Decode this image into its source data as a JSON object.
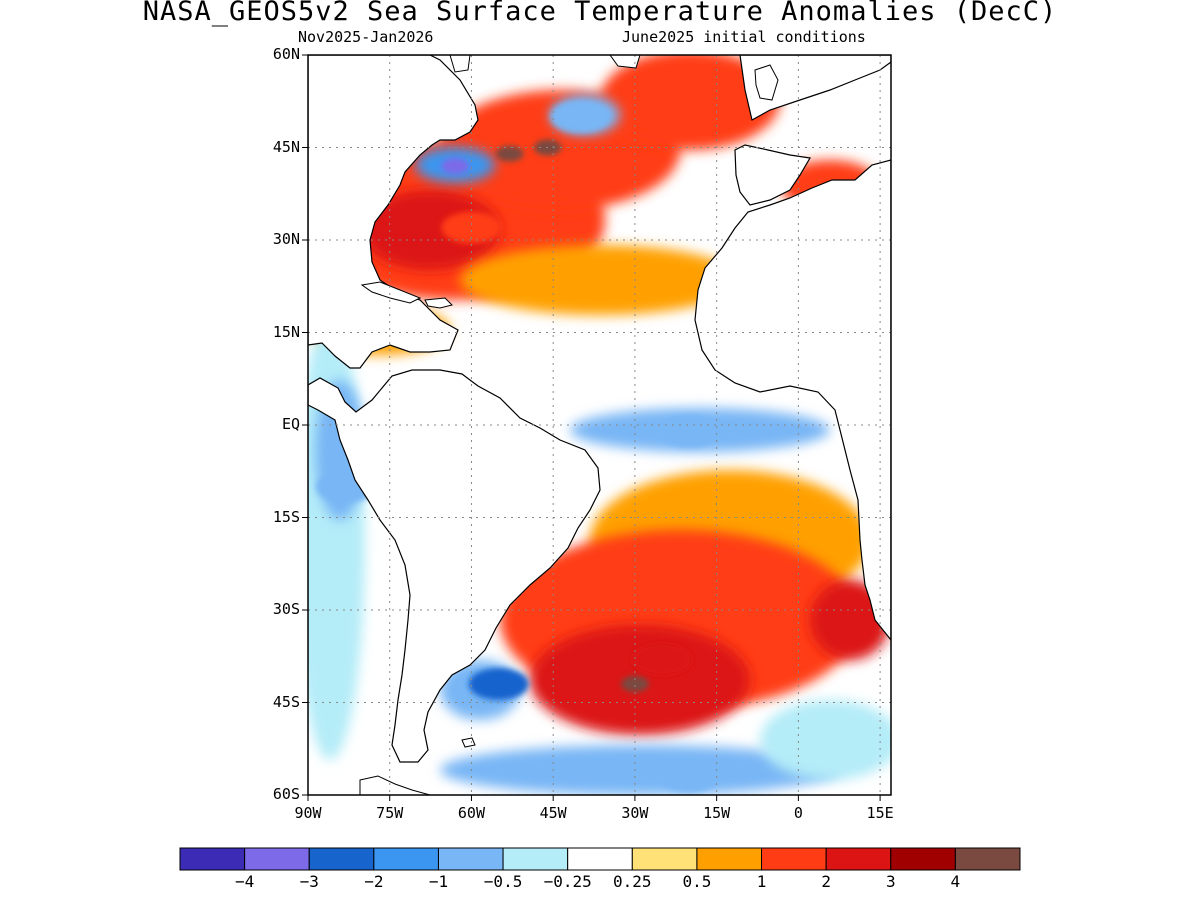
{
  "title": "NASA_GEOS5v2 Sea Surface Temperature Anomalies (DecC)",
  "subtitle_left": "Nov2025-Jan2026",
  "subtitle_right": "June2025 initial conditions",
  "map": {
    "region": "Atlantic Ocean",
    "lat_ticks": [
      "60N",
      "45N",
      "30N",
      "15N",
      "EQ",
      "15S",
      "30S",
      "45S",
      "60S"
    ],
    "lon_ticks": [
      "90W",
      "75W",
      "60W",
      "45W",
      "30W",
      "15W",
      "0",
      "15E"
    ],
    "lat_range": [
      -60,
      60
    ],
    "lon_range": [
      -90,
      17
    ],
    "grid": "dotted",
    "features": [
      {
        "name": "NW Atlantic warm anomaly",
        "lon": -60,
        "lat": 32,
        "value": 1.5
      },
      {
        "name": "Gulf of Maine cold pool",
        "lon": -63,
        "lat": 42,
        "value": -3.5
      },
      {
        "name": "Newfoundland hot spot",
        "lon": -53,
        "lat": 44,
        "value": 4.5
      },
      {
        "name": "Grand Banks hot spot",
        "lon": -46,
        "lat": 45,
        "value": 4.5
      },
      {
        "name": "Labrador Sea cool patch",
        "lon": -40,
        "lat": 50,
        "value": -1.0
      },
      {
        "name": "Equatorial cool tongue",
        "lon": -20,
        "lat": -1,
        "value": -0.8
      },
      {
        "name": "Pacific coast cool waters",
        "lon": -83,
        "lat": -10,
        "value": -0.6
      },
      {
        "name": "South Atlantic warm anomaly",
        "lon": -25,
        "lat": -38,
        "value": 2.5
      },
      {
        "name": "South Atlantic hot core",
        "lon": -30,
        "lat": -42,
        "value": 4.5
      },
      {
        "name": "Rio de la Plata cold patch",
        "lon": -55,
        "lat": -42,
        "value": -2.5
      },
      {
        "name": "Southern Ocean cool band",
        "lon": -20,
        "lat": -57,
        "value": -0.8
      }
    ]
  },
  "colorbar": {
    "labels": [
      "−4",
      "−3",
      "−2",
      "−1",
      "−0.5",
      "−0.25",
      "0.25",
      "0.5",
      "1",
      "2",
      "3",
      "4"
    ],
    "colors": [
      "#3c2bb4",
      "#7d6ae8",
      "#1864cd",
      "#3a96f0",
      "#78b6f5",
      "#b4ecf8",
      "#ffffff",
      "#ffe178",
      "#ffa000",
      "#ff3c14",
      "#dc1414",
      "#a00000",
      "#7a4a40"
    ]
  }
}
